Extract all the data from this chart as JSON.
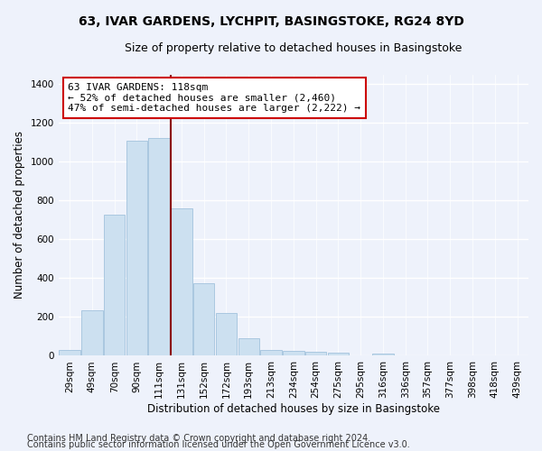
{
  "title": "63, IVAR GARDENS, LYCHPIT, BASINGSTOKE, RG24 8YD",
  "subtitle": "Size of property relative to detached houses in Basingstoke",
  "xlabel": "Distribution of detached houses by size in Basingstoke",
  "ylabel": "Number of detached properties",
  "footnote1": "Contains HM Land Registry data © Crown copyright and database right 2024.",
  "footnote2": "Contains public sector information licensed under the Open Government Licence v3.0.",
  "bar_labels": [
    "29sqm",
    "49sqm",
    "70sqm",
    "90sqm",
    "111sqm",
    "131sqm",
    "152sqm",
    "172sqm",
    "193sqm",
    "213sqm",
    "234sqm",
    "254sqm",
    "275sqm",
    "295sqm",
    "316sqm",
    "336sqm",
    "357sqm",
    "377sqm",
    "398sqm",
    "418sqm",
    "439sqm"
  ],
  "bar_values": [
    30,
    235,
    725,
    1110,
    1120,
    760,
    375,
    220,
    90,
    30,
    25,
    20,
    15,
    0,
    10,
    0,
    0,
    0,
    0,
    0,
    0
  ],
  "bar_color": "#cce0f0",
  "bar_edge_color": "#aac8e0",
  "vline_x_index": 4.5,
  "vline_color": "#8b0000",
  "annotation_text": "63 IVAR GARDENS: 118sqm\n← 52% of detached houses are smaller (2,460)\n47% of semi-detached houses are larger (2,222) →",
  "annotation_box_color": "#ffffff",
  "annotation_box_edge_color": "#cc0000",
  "ylim": [
    0,
    1450
  ],
  "yticks": [
    0,
    200,
    400,
    600,
    800,
    1000,
    1200,
    1400
  ],
  "background_color": "#eef2fb",
  "grid_color": "#ffffff",
  "title_fontsize": 10,
  "subtitle_fontsize": 9,
  "axis_label_fontsize": 8.5,
  "tick_fontsize": 7.5,
  "annotation_fontsize": 8,
  "footnote_fontsize": 7
}
